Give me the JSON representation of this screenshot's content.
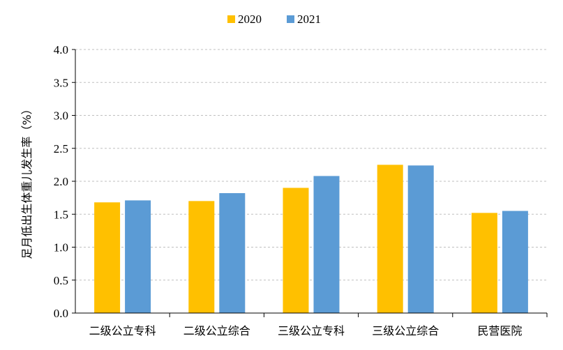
{
  "chart_data": {
    "type": "bar",
    "title": "",
    "xlabel": "",
    "ylabel": "足月低出生体重儿发生率（%）",
    "ylim": [
      0,
      4.0
    ],
    "ytick_step": 0.5,
    "grid": "horizontal-dashed",
    "legend_position": "top",
    "categories": [
      "二级公立专科",
      "二级公立综合",
      "三级公立专科",
      "三级公立综合",
      "民营医院"
    ],
    "series": [
      {
        "name": "2020",
        "color": "#FFC000",
        "values": [
          1.68,
          1.7,
          1.9,
          2.25,
          1.52
        ]
      },
      {
        "name": "2021",
        "color": "#5B9BD5",
        "values": [
          1.71,
          1.82,
          2.08,
          2.24,
          1.55
        ]
      }
    ]
  }
}
